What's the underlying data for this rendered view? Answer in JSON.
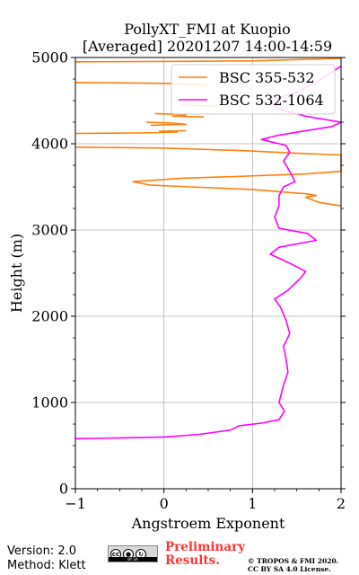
{
  "chart_data": {
    "type": "line",
    "title": "PollyXT_FMI at Kuopio",
    "subtitle": "[Averaged] 20201207 14:00-14:59",
    "xlabel": "Angstroem Exponent",
    "ylabel": "Height (m)",
    "xlim": [
      -1,
      2
    ],
    "ylim": [
      0,
      5000
    ],
    "xticks": [
      "−1",
      "0",
      "1",
      "2"
    ],
    "yticks": [
      "0",
      "1000",
      "2000",
      "3000",
      "4000",
      "5000"
    ],
    "grid": true,
    "legend_position": "top-right",
    "series": [
      {
        "name": "BSC 355-532",
        "color": "#ff7f0e",
        "points": [
          [
            -1.0,
            3960
          ],
          [
            0.0,
            3950
          ],
          [
            0.9,
            3920
          ],
          [
            1.5,
            3890
          ],
          [
            2.0,
            3870
          ],
          [
            2.0,
            3680
          ],
          [
            1.6,
            3650
          ],
          [
            0.8,
            3620
          ],
          [
            0.2,
            3600
          ],
          [
            -0.35,
            3560
          ],
          [
            -0.15,
            3520
          ],
          [
            0.3,
            3500
          ],
          [
            1.0,
            3470
          ],
          [
            1.6,
            3420
          ],
          [
            1.72,
            3400
          ],
          [
            1.6,
            3380
          ],
          [
            1.75,
            3320
          ],
          [
            2.0,
            3280
          ]
        ]
      },
      {
        "name": "BSC 532-1064",
        "color": "#ff00ff",
        "points": [
          [
            -1.0,
            580
          ],
          [
            -0.5,
            590
          ],
          [
            0.0,
            600
          ],
          [
            0.4,
            630
          ],
          [
            0.75,
            680
          ],
          [
            0.85,
            730
          ],
          [
            1.1,
            760
          ],
          [
            1.3,
            800
          ],
          [
            1.36,
            900
          ],
          [
            1.3,
            1000
          ],
          [
            1.35,
            1200
          ],
          [
            1.4,
            1350
          ],
          [
            1.38,
            1500
          ],
          [
            1.35,
            1650
          ],
          [
            1.42,
            1800
          ],
          [
            1.38,
            1950
          ],
          [
            1.32,
            2100
          ],
          [
            1.25,
            2200
          ],
          [
            1.4,
            2300
          ],
          [
            1.55,
            2450
          ],
          [
            1.6,
            2520
          ],
          [
            1.45,
            2600
          ],
          [
            1.2,
            2720
          ],
          [
            1.3,
            2800
          ],
          [
            1.72,
            2880
          ],
          [
            1.62,
            2960
          ],
          [
            1.3,
            3020
          ],
          [
            1.25,
            3150
          ],
          [
            1.3,
            3280
          ],
          [
            1.3,
            3400
          ],
          [
            1.35,
            3500
          ],
          [
            1.48,
            3560
          ],
          [
            1.42,
            3680
          ],
          [
            1.35,
            3800
          ],
          [
            1.42,
            3900
          ],
          [
            1.38,
            3980
          ],
          [
            1.1,
            4050
          ],
          [
            1.3,
            4100
          ],
          [
            1.6,
            4150
          ],
          [
            1.9,
            4200
          ],
          [
            2.0,
            4250
          ],
          [
            1.6,
            4320
          ],
          [
            1.3,
            4400
          ],
          [
            1.2,
            4500
          ],
          [
            1.5,
            4600
          ],
          [
            1.7,
            4700
          ],
          [
            1.85,
            4800
          ],
          [
            2.0,
            4900
          ]
        ]
      }
    ],
    "background_orange_fragments": [
      [
        [
          -1.0,
          4950
        ],
        [
          0.2,
          4955
        ],
        [
          1.0,
          4960
        ],
        [
          2.0,
          4990
        ]
      ],
      [
        [
          -1.0,
          4710
        ],
        [
          0.0,
          4700
        ],
        [
          0.5,
          4680
        ]
      ],
      [
        [
          0.2,
          4450
        ],
        [
          0.5,
          4440
        ],
        [
          0.6,
          4430
        ]
      ],
      [
        [
          -0.1,
          4350
        ],
        [
          0.2,
          4340
        ],
        [
          0.25,
          4330
        ],
        [
          0.1,
          4320
        ],
        [
          0.45,
          4310
        ]
      ],
      [
        [
          -0.2,
          4250
        ],
        [
          0.1,
          4240
        ],
        [
          0.25,
          4225
        ],
        [
          0.0,
          4220
        ],
        [
          -0.15,
          4215
        ]
      ],
      [
        [
          -1.0,
          4120
        ],
        [
          -0.3,
          4125
        ],
        [
          0.15,
          4135
        ],
        [
          -0.05,
          4145
        ],
        [
          0.25,
          4150
        ]
      ]
    ]
  },
  "footer": {
    "version": "Version: 2.0",
    "method": "Method: Klett",
    "preliminary_line1": "Preliminary",
    "preliminary_line2": "Results.",
    "copyright_line1": "© TROPOS & FMI 2020.",
    "copyright_line2": "CC BY SA 4.0 License.",
    "license_badge_text": "BY SA"
  }
}
